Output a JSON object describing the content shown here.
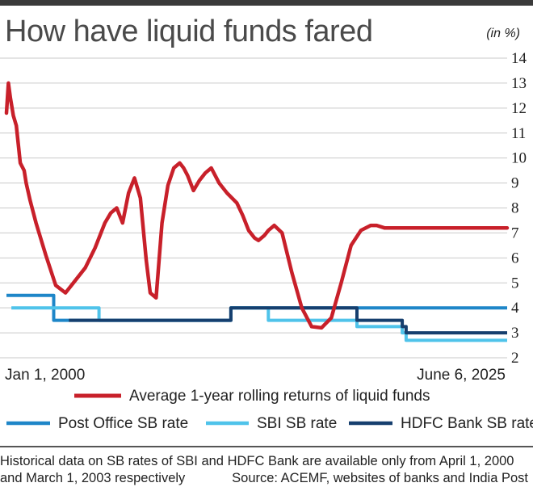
{
  "title": "How have liquid funds fared",
  "unit": "(in %)",
  "footnote": {
    "line1": "Historical data on SB rates of SBI and HDFC Bank are available only from April 1, 2000",
    "line2_left": "and March 1, 2003 respectively",
    "source": "Source: ACEMF, websites of banks and India Post"
  },
  "chart_data": {
    "type": "line",
    "title": "How have liquid funds fared",
    "ylabel": "(in %)",
    "xlabel": "",
    "x_tick_labels": [
      "Jan 1, 2000",
      "June 6, 2025"
    ],
    "xlim": [
      2000.0,
      2025.43
    ],
    "ylim": [
      2,
      14
    ],
    "y_ticks": [
      2,
      3,
      4,
      5,
      6,
      7,
      8,
      9,
      10,
      11,
      12,
      13,
      14
    ],
    "grid": true,
    "legend_position": "bottom",
    "series": [
      {
        "name": "Average 1-year rolling returns of liquid funds",
        "color": "#c8202a",
        "x": [
          2000.0,
          2000.1,
          2000.2,
          2000.35,
          2000.5,
          2000.7,
          2000.9,
          2001.0,
          2001.2,
          2001.5,
          2002.0,
          2002.5,
          2003.0,
          2003.5,
          2004.0,
          2004.5,
          2005.0,
          2005.3,
          2005.6,
          2005.9,
          2006.2,
          2006.5,
          2006.8,
          2007.1,
          2007.3,
          2007.6,
          2007.9,
          2008.2,
          2008.5,
          2008.8,
          2009.0,
          2009.2,
          2009.5,
          2009.8,
          2010.1,
          2010.4,
          2010.8,
          2011.2,
          2011.7,
          2012.0,
          2012.3,
          2012.6,
          2012.8,
          2013.1,
          2013.3,
          2013.6,
          2014.0,
          2014.5,
          2015.0,
          2015.5,
          2016.0,
          2016.5,
          2017.0,
          2017.5,
          2018.0,
          2018.5,
          2018.8,
          2019.2,
          2019.6,
          2020.0,
          2020.4,
          2020.8,
          2021.0,
          2021.3,
          2021.6,
          2022.0,
          2022.5,
          2023.0,
          2023.5,
          2024.0,
          2024.5,
          2025.0,
          2025.43
        ],
        "values": [
          11.8,
          13.0,
          12.4,
          11.7,
          11.3,
          9.8,
          9.5,
          9.0,
          8.3,
          7.4,
          6.1,
          4.9,
          4.6,
          5.1,
          5.6,
          6.4,
          7.4,
          7.8,
          8.0,
          7.4,
          8.6,
          9.2,
          8.4,
          5.9,
          4.6,
          4.4,
          7.4,
          8.9,
          9.6,
          9.8,
          9.6,
          9.3,
          8.7,
          9.1,
          9.4,
          9.6,
          9.0,
          8.6,
          8.2,
          7.7,
          7.1,
          6.8,
          6.7,
          6.9,
          7.1,
          7.3,
          7.0,
          5.4,
          4.0,
          3.25,
          3.2,
          3.6,
          5.0,
          6.5,
          7.1,
          7.3,
          7.3,
          7.2,
          7.2,
          7.2,
          7.2,
          7.2,
          7.2,
          7.2,
          7.2,
          7.2,
          7.2,
          7.2,
          7.2,
          7.2,
          7.2,
          7.2,
          7.2
        ]
      },
      {
        "name": "Post Office SB rate",
        "color": "#1e86c8",
        "x": [
          2000.0,
          2002.4,
          2002.4,
          2011.4,
          2011.4,
          2025.43
        ],
        "values": [
          4.5,
          4.5,
          3.5,
          3.5,
          4.0,
          4.0
        ]
      },
      {
        "name": "SBI SB rate",
        "color": "#4fc3ea",
        "x": [
          2000.25,
          2004.7,
          2004.7,
          2011.4,
          2011.4,
          2013.3,
          2013.3,
          2017.8,
          2017.8,
          2020.1,
          2020.1,
          2020.3,
          2020.3,
          2025.43
        ],
        "values": [
          4.0,
          4.0,
          3.5,
          3.5,
          4.0,
          4.0,
          3.5,
          3.5,
          3.25,
          3.25,
          3.0,
          3.0,
          2.7,
          2.7
        ]
      },
      {
        "name": "HDFC Bank SB rate",
        "color": "#163f6e",
        "x": [
          2003.17,
          2011.4,
          2011.4,
          2017.8,
          2017.8,
          2020.1,
          2020.1,
          2020.3,
          2020.3,
          2025.43
        ],
        "values": [
          3.5,
          3.5,
          4.0,
          4.0,
          3.5,
          3.5,
          3.25,
          3.25,
          3.0,
          3.0
        ]
      }
    ]
  }
}
